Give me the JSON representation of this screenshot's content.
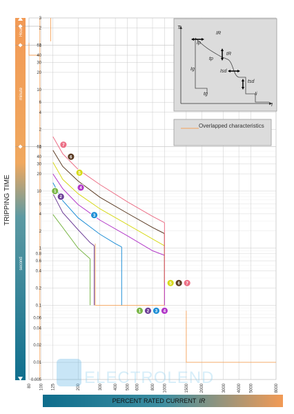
{
  "chart_data": {
    "type": "line",
    "xlabel": "PERCENT RATED CURRENT",
    "xlabel_symbol": "IR",
    "ylabel": "TRIPPING TIME",
    "x_scale": "log",
    "y_scale": "log",
    "xlim": [
      80,
      8000
    ],
    "ylim": [
      0.005,
      10800
    ],
    "x_ticks": [
      "80",
      "100",
      "125",
      "200",
      "300",
      "400",
      "500",
      "600",
      "800",
      "1000",
      "1500",
      "2000",
      "3000",
      "4000",
      "5000",
      "8000"
    ],
    "y_ticks": {
      "hours": [
        "3",
        "2",
        "1"
      ],
      "minutes": [
        "60",
        "40",
        "30",
        "20",
        "10",
        "6",
        "4",
        "2",
        "1"
      ],
      "seconds": [
        "60",
        "40",
        "30",
        "20",
        "10",
        "6",
        "4",
        "2",
        "1",
        "0.8",
        "0.6",
        "0.4",
        "0.2",
        "0.1",
        "0.06",
        "0.04",
        "0.02",
        "0.01",
        "0.005"
      ]
    },
    "y_bands": [
      "Hours",
      "minute",
      "second"
    ],
    "legend_box": {
      "text": "Overlapped characteristics"
    },
    "inset_labels": [
      "T",
      "I",
      "IR",
      "tR",
      "Ip",
      "tp",
      "Ig",
      "tg",
      "Isd",
      "tsd",
      "Ii"
    ],
    "curve_groups": {
      "markers_low": [
        "1",
        "2",
        "3",
        "4"
      ],
      "markers_high": [
        "5",
        "6",
        "7"
      ]
    },
    "series": [
      {
        "name": "1",
        "color": "#7ab648",
        "points": [
          [
            125,
            3.9
          ],
          [
            150,
            2.3
          ],
          [
            200,
            1.0
          ],
          [
            250,
            0.65
          ]
        ]
      },
      {
        "name": "2",
        "color": "#6c3d96",
        "points": [
          [
            125,
            9
          ],
          [
            150,
            4.2
          ],
          [
            200,
            2.1
          ],
          [
            250,
            1.25
          ],
          [
            270,
            1.1
          ]
        ]
      },
      {
        "name": "3",
        "color": "#1f8fd6",
        "points": [
          [
            125,
            14
          ],
          [
            150,
            6.8
          ],
          [
            200,
            3.4
          ],
          [
            300,
            1.75
          ],
          [
            400,
            1.2
          ],
          [
            450,
            1.05
          ]
        ]
      },
      {
        "name": "4",
        "color": "#b238c8",
        "points": [
          [
            125,
            20
          ],
          [
            150,
            11
          ],
          [
            200,
            5.8
          ],
          [
            300,
            3.1
          ],
          [
            500,
            1.65
          ],
          [
            800,
            0.9
          ],
          [
            1000,
            0.75
          ]
        ]
      },
      {
        "name": "5",
        "color": "#d7d91a",
        "points": [
          [
            125,
            32
          ],
          [
            150,
            16
          ],
          [
            200,
            9
          ],
          [
            300,
            4.9
          ],
          [
            500,
            2.6
          ],
          [
            800,
            1.45
          ],
          [
            1000,
            1.1
          ]
        ]
      },
      {
        "name": "6",
        "color": "#5a3a22",
        "points": [
          [
            125,
            52
          ],
          [
            150,
            27
          ],
          [
            200,
            15
          ],
          [
            300,
            7.8
          ],
          [
            500,
            4.1
          ],
          [
            800,
            2.3
          ],
          [
            1000,
            1.8
          ]
        ]
      },
      {
        "name": "7",
        "color": "#ec6f86",
        "points": [
          [
            125,
            90
          ],
          [
            150,
            45
          ],
          [
            200,
            24
          ],
          [
            300,
            13
          ],
          [
            500,
            6.5
          ],
          [
            800,
            3.6
          ],
          [
            1000,
            2.8
          ]
        ]
      }
    ],
    "orange_envelope_color": "#f5a25a",
    "watermark": "ELECTROLEND"
  }
}
